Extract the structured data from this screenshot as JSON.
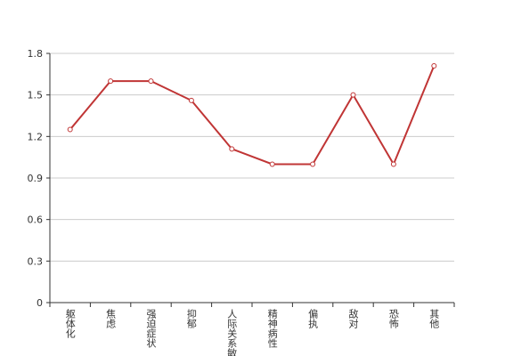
{
  "chart_data": {
    "type": "line",
    "categories": [
      "躯体化",
      "焦虑",
      "强迫症状",
      "抑郁",
      "人际关系敏感",
      "精神病性",
      "偏执",
      "敌对",
      "恐怖",
      "其他"
    ],
    "series": [
      {
        "color": "#c03535",
        "values": [
          1.25,
          1.6,
          1.6,
          1.46,
          1.11,
          1.0,
          1.0,
          1.5,
          1.0,
          1.71
        ]
      }
    ],
    "ylim": [
      0,
      1.8
    ],
    "yticks": [
      0,
      0.3,
      0.6,
      0.9,
      1.2,
      1.5,
      1.8
    ],
    "grid": true
  }
}
